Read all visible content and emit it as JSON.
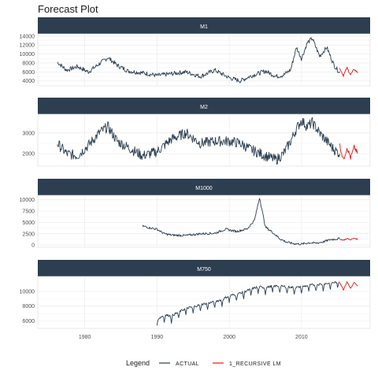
{
  "chart_data": {
    "type": "line",
    "title": "Forecast Plot",
    "legend": {
      "title": "Legend",
      "position": "bottom",
      "entries": [
        {
          "label": "ACTUAL",
          "color": "#2c3e50"
        },
        {
          "label": "1_RECURSIVE LM",
          "color": "#e31a1c"
        }
      ]
    },
    "colors": {
      "strip": "#2c3e50",
      "actual": "#2c3e50",
      "forecast": "#e31a1c",
      "grid": "#ebebeb"
    },
    "x_axis": {
      "lim": [
        1973.5,
        2019.5
      ],
      "ticks": [
        1980,
        1990,
        2000,
        2010
      ]
    },
    "grid": true,
    "panels": [
      {
        "label": "M1",
        "ylim": [
          2900,
          14500
        ],
        "yticks": [
          4000,
          6000,
          8000,
          10000,
          12000,
          14000
        ],
        "series": [
          {
            "name": "ACTUAL",
            "x": [
              1976.2,
              1977.5,
              1979,
              1980.5,
              1982,
              1983.2,
              1984.5,
              1986,
              1988,
              1990,
              1992,
              1994,
              1996,
              1998,
              2000,
              2001.5,
              2003,
              2005,
              2006.5,
              2007.5,
              2008.5,
              2009.3,
              2010,
              2010.8,
              2011.5,
              2012.5,
              2013.5,
              2014.5,
              2015.3
            ],
            "y": [
              8200,
              6400,
              7200,
              6000,
              7800,
              9200,
              7500,
              6200,
              5800,
              5200,
              5600,
              6000,
              5000,
              6400,
              4700,
              4000,
              5100,
              6200,
              5000,
              5300,
              6500,
              11500,
              9000,
              12500,
              13500,
              9500,
              11500,
              7500,
              5800
            ]
          },
          {
            "name": "1_RECURSIVE LM",
            "x": [
              2015.3,
              2015.8,
              2016.3,
              2016.8,
              2017.3,
              2017.8
            ],
            "y": [
              6800,
              5200,
              6900,
              5400,
              6600,
              5800
            ]
          }
        ]
      },
      {
        "label": "M2",
        "ylim": [
          1400,
          3900
        ],
        "yticks": [
          2000,
          3000
        ],
        "series": [
          {
            "name": "ACTUAL",
            "x": [
              1976.2,
              1977.5,
              1979,
              1980.5,
              1982,
              1983.2,
              1984.5,
              1986,
              1988,
              1990,
              1992,
              1994,
              1996,
              1998,
              2000,
              2001.5,
              2003,
              2005,
              2006.5,
              2007.5,
              2008.5,
              2009.3,
              2010,
              2010.8,
              2011.5,
              2012.5,
              2013.5,
              2014.5,
              2015.3
            ],
            "y": [
              2500,
              2000,
              1900,
              2400,
              3000,
              3300,
              2600,
              2300,
              1900,
              2100,
              2700,
              3000,
              2500,
              2600,
              2600,
              2500,
              2200,
              1900,
              1700,
              2000,
              2600,
              3200,
              3600,
              3300,
              3500,
              3000,
              2600,
              2200,
              2000
            ]
          },
          {
            "name": "1_RECURSIVE LM",
            "x": [
              2015.3,
              2015.8,
              2016.3,
              2016.8,
              2017.3,
              2017.8
            ],
            "y": [
              2400,
              1700,
              2300,
              1800,
              2300,
              2000
            ]
          }
        ]
      },
      {
        "label": "M1000",
        "ylim": [
          -500,
          11000
        ],
        "yticks": [
          0,
          2500,
          5000,
          7500,
          10000
        ],
        "series": [
          {
            "name": "ACTUAL",
            "x": [
              1988,
              1989,
              1990,
              1991,
              1992,
              1994,
              1996,
              1998,
              1999.5,
              2001,
              2002.5,
              2003.5,
              2004.2,
              2005,
              2006,
              2007,
              2008,
              2009,
              2010,
              2011,
              2012,
              2013,
              2014,
              2015.3
            ],
            "y": [
              4200,
              3800,
              3500,
              2500,
              2200,
              2100,
              2500,
              2600,
              3500,
              3000,
              3600,
              5500,
              10500,
              4000,
              2800,
              1400,
              600,
              300,
              200,
              500,
              400,
              700,
              1200,
              1400
            ]
          },
          {
            "name": "1_RECURSIVE LM",
            "x": [
              2015.3,
              2015.8,
              2016.3,
              2016.8,
              2017.3,
              2017.8
            ],
            "y": [
              1300,
              1100,
              1400,
              1200,
              1500,
              1300
            ]
          }
        ]
      },
      {
        "label": "M750",
        "ylim": [
          5000,
          12000
        ],
        "yticks": [
          6000,
          8000,
          10000
        ],
        "series": [
          {
            "name": "ACTUAL",
            "x": [
              1990,
              1991,
              1992,
              1993,
              1994,
              1995,
              1996,
              1997,
              1998,
              1999,
              2000,
              2001,
              2002,
              2003,
              2004,
              2005,
              2006,
              2007,
              2008,
              2009,
              2010,
              2011,
              2012,
              2013,
              2014,
              2015.3
            ],
            "y": [
              6200,
              6800,
              6700,
              7200,
              7700,
              7900,
              8200,
              8400,
              8600,
              8900,
              9400,
              9600,
              9900,
              10300,
              10600,
              10500,
              10700,
              10700,
              10600,
              10500,
              10600,
              10800,
              10900,
              11000,
              11100,
              11300
            ]
          },
          {
            "name": "1_RECURSIVE LM",
            "x": [
              2015.3,
              2015.8,
              2016.3,
              2016.8,
              2017.3,
              2017.8
            ],
            "y": [
              11200,
              10200,
              11300,
              10400,
              11200,
              10700
            ]
          }
        ]
      }
    ]
  }
}
